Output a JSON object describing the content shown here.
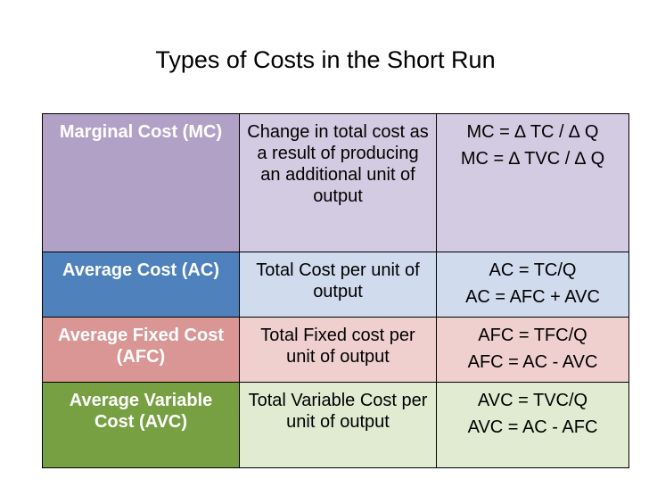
{
  "title": "Types of Costs in the Short Run",
  "table": {
    "rows": [
      {
        "name": "Marginal Cost (MC)",
        "description": "Change in total cost as a result of producing an additional unit of output",
        "formulas": [
          "MC = ∆ TC / ∆ Q",
          "MC = ∆ TVC / ∆ Q"
        ]
      },
      {
        "name": "Average Cost (AC)",
        "description": "Total Cost per unit of output",
        "formulas": [
          "AC = TC/Q",
          "AC = AFC + AVC"
        ]
      },
      {
        "name": "Average Fixed Cost (AFC)",
        "description": "Total Fixed cost per unit of output",
        "formulas": [
          "AFC = TFC/Q",
          "AFC = AC - AVC"
        ]
      },
      {
        "name": "Average Variable Cost (AVC)",
        "description": "Total Variable Cost per unit of output",
        "formulas": [
          "AVC = TVC/Q",
          "AVC = AC - AFC"
        ]
      }
    ]
  }
}
